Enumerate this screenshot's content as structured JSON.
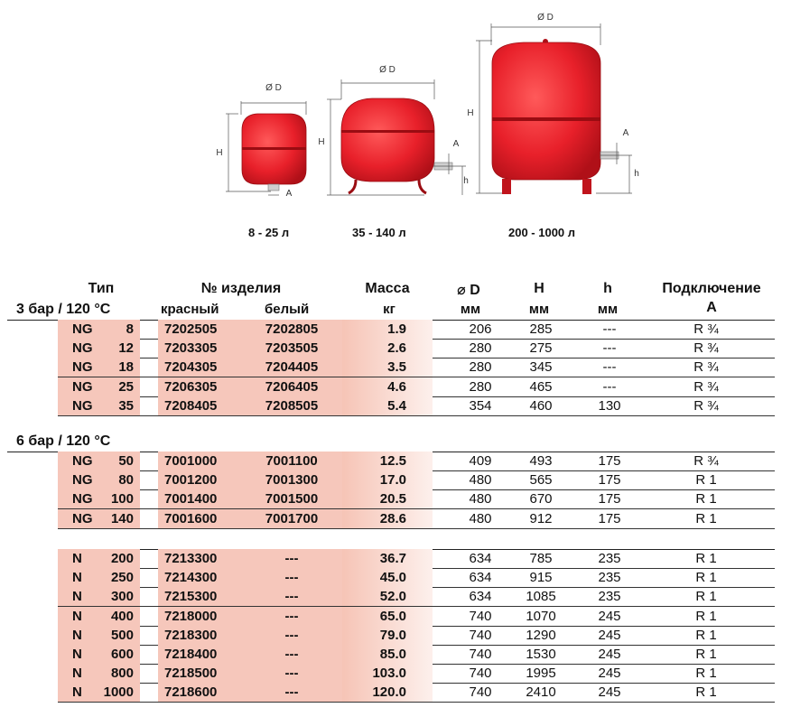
{
  "vessels": [
    {
      "caption": "8 - 25 л",
      "dim_d": "Ø D",
      "dim_h": "H",
      "dim_a": "A"
    },
    {
      "caption": "35 - 140 л",
      "dim_d": "Ø D",
      "dim_h": "H",
      "dim_a": "A",
      "dim_hs": "h"
    },
    {
      "caption": "200 - 1000 л",
      "dim_d": "Ø D",
      "dim_h": "H",
      "dim_a": "A",
      "dim_hs": "h"
    }
  ],
  "headers": {
    "type": "Тип",
    "part_no": "№ изделия",
    "part_red": "красный",
    "part_white": "белый",
    "mass": "Масса",
    "mass_unit": "кг",
    "diameter": "⌀ D",
    "diameter_unit": "мм",
    "height": "H",
    "height_unit": "мм",
    "h": "h",
    "h_unit": "мм",
    "connection": "Подключение",
    "connection_unit": "A"
  },
  "groups": [
    {
      "label": "3 бар / 120 °C",
      "rows": [
        {
          "t1": "NG",
          "t2": "8",
          "red": "7202505",
          "white": "7202805",
          "mass": "1.9",
          "d": "206",
          "H": "285",
          "h": "---",
          "a": "R ¾"
        },
        {
          "t1": "NG",
          "t2": "12",
          "red": "7203305",
          "white": "7203505",
          "mass": "2.6",
          "d": "280",
          "H": "275",
          "h": "---",
          "a": "R ¾"
        },
        {
          "t1": "NG",
          "t2": "18",
          "red": "7204305",
          "white": "7204405",
          "mass": "3.5",
          "d": "280",
          "H": "345",
          "h": "---",
          "a": "R ¾"
        },
        {
          "t1": "NG",
          "t2": "25",
          "red": "7206305",
          "white": "7206405",
          "mass": "4.6",
          "d": "280",
          "H": "465",
          "h": "---",
          "a": "R ¾"
        },
        {
          "t1": "NG",
          "t2": "35",
          "red": "7208405",
          "white": "7208505",
          "mass": "5.4",
          "d": "354",
          "H": "460",
          "h": "130",
          "a": "R ¾"
        }
      ]
    },
    {
      "label": "6 бар / 120 °C",
      "rows": [
        {
          "t1": "NG",
          "t2": "50",
          "red": "7001000",
          "white": "7001100",
          "mass": "12.5",
          "d": "409",
          "H": "493",
          "h": "175",
          "a": "R ¾"
        },
        {
          "t1": "NG",
          "t2": "80",
          "red": "7001200",
          "white": "7001300",
          "mass": "17.0",
          "d": "480",
          "H": "565",
          "h": "175",
          "a": "R 1"
        },
        {
          "t1": "NG",
          "t2": "100",
          "red": "7001400",
          "white": "7001500",
          "mass": "20.5",
          "d": "480",
          "H": "670",
          "h": "175",
          "a": "R 1"
        },
        {
          "t1": "NG",
          "t2": "140",
          "red": "7001600",
          "white": "7001700",
          "mass": "28.6",
          "d": "480",
          "H": "912",
          "h": "175",
          "a": "R 1"
        }
      ]
    },
    {
      "label": "",
      "rows": [
        {
          "t1": "N",
          "t2": "200",
          "red": "7213300",
          "white": "---",
          "mass": "36.7",
          "d": "634",
          "H": "785",
          "h": "235",
          "a": "R 1"
        },
        {
          "t1": "N",
          "t2": "250",
          "red": "7214300",
          "white": "---",
          "mass": "45.0",
          "d": "634",
          "H": "915",
          "h": "235",
          "a": "R 1"
        },
        {
          "t1": "N",
          "t2": "300",
          "red": "7215300",
          "white": "---",
          "mass": "52.0",
          "d": "634",
          "H": "1085",
          "h": "235",
          "a": "R 1"
        },
        {
          "t1": "N",
          "t2": "400",
          "red": "7218000",
          "white": "---",
          "mass": "65.0",
          "d": "740",
          "H": "1070",
          "h": "245",
          "a": "R 1"
        },
        {
          "t1": "N",
          "t2": "500",
          "red": "7218300",
          "white": "---",
          "mass": "79.0",
          "d": "740",
          "H": "1290",
          "h": "245",
          "a": "R 1"
        },
        {
          "t1": "N",
          "t2": "600",
          "red": "7218400",
          "white": "---",
          "mass": "85.0",
          "d": "740",
          "H": "1530",
          "h": "245",
          "a": "R 1"
        },
        {
          "t1": "N",
          "t2": "800",
          "red": "7218500",
          "white": "---",
          "mass": "103.0",
          "d": "740",
          "H": "1995",
          "h": "245",
          "a": "R 1"
        },
        {
          "t1": "N",
          "t2": "1000",
          "red": "7218600",
          "white": "---",
          "mass": "120.0",
          "d": "740",
          "H": "2410",
          "h": "245",
          "a": "R 1"
        }
      ]
    }
  ],
  "colors": {
    "vessel": "#e8202a",
    "vessel_dark": "#b01018",
    "highlight": "#f6c7bb"
  }
}
